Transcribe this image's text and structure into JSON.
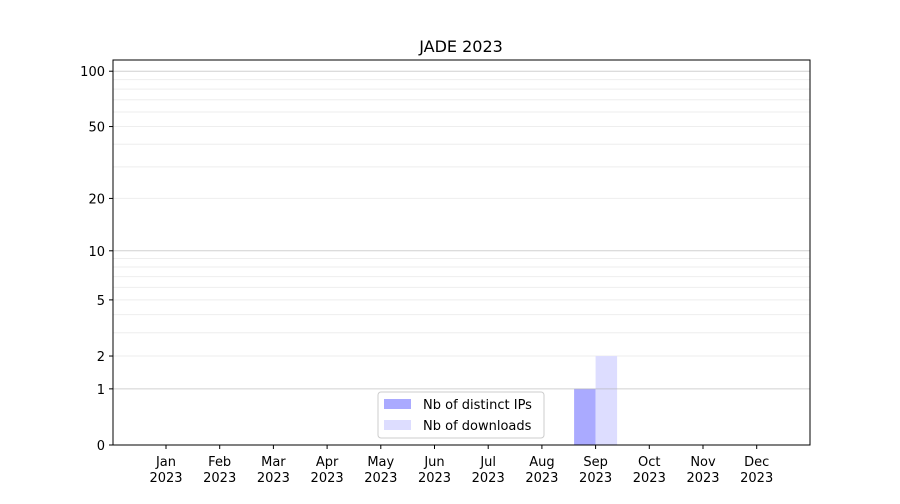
{
  "chart_data": {
    "type": "bar",
    "title": "JADE 2023",
    "xlabel": "",
    "ylabel": "",
    "yscale": "symlog",
    "ylim": [
      0,
      115
    ],
    "yticks": [
      0,
      1,
      2,
      5,
      10,
      20,
      50,
      100
    ],
    "ytick_labels": [
      "0",
      "1",
      "2",
      "5",
      "10",
      "20",
      "50",
      "100"
    ],
    "grid": true,
    "legend_position": "bottom-center",
    "categories": [
      [
        "Jan",
        "2023"
      ],
      [
        "Feb",
        "2023"
      ],
      [
        "Mar",
        "2023"
      ],
      [
        "Apr",
        "2023"
      ],
      [
        "May",
        "2023"
      ],
      [
        "Jun",
        "2023"
      ],
      [
        "Jul",
        "2023"
      ],
      [
        "Aug",
        "2023"
      ],
      [
        "Sep",
        "2023"
      ],
      [
        "Oct",
        "2023"
      ],
      [
        "Nov",
        "2023"
      ],
      [
        "Dec",
        "2023"
      ]
    ],
    "series": [
      {
        "name": "Nb of distinct IPs",
        "color": "#aaaaff",
        "values": [
          0,
          0,
          0,
          0,
          0,
          0,
          0,
          0,
          1,
          0,
          0,
          0
        ]
      },
      {
        "name": "Nb of downloads",
        "color": "#ddddff",
        "values": [
          0,
          0,
          0,
          0,
          0,
          0,
          0,
          0,
          2,
          0,
          0,
          0
        ]
      }
    ]
  }
}
